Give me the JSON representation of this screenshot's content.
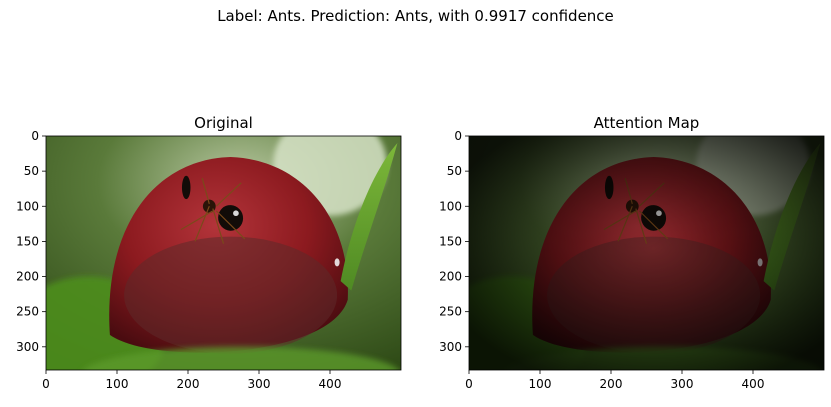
{
  "figure": {
    "suptitle": "Label: Ants. Prediction: Ants, with 0.9917 confidence"
  },
  "panels": [
    {
      "title": "Original",
      "variant": "original"
    },
    {
      "title": "Attention Map",
      "variant": "attention"
    }
  ],
  "chart_data": [
    {
      "type": "image",
      "title": "Original",
      "xlabel": "",
      "ylabel": "",
      "xlim": [
        0,
        500
      ],
      "ylim": [
        333,
        0
      ],
      "xticks": [
        0,
        100,
        200,
        300,
        400
      ],
      "yticks": [
        0,
        50,
        100,
        150,
        200,
        250,
        300
      ],
      "image_content": "macro photo of an ant on a red flower bud with green background"
    },
    {
      "type": "image",
      "title": "Attention Map",
      "xlabel": "",
      "ylabel": "",
      "xlim": [
        0,
        500
      ],
      "ylim": [
        333,
        0
      ],
      "xticks": [
        0,
        100,
        200,
        300,
        400
      ],
      "yticks": [
        0,
        50,
        100,
        150,
        200,
        250,
        300
      ],
      "image_content": "same photo darkened except regions of high attention"
    }
  ],
  "colors": {
    "bud_red": "#8c1a1f",
    "leaf_green": "#4f8a23",
    "bg_green": "#5a7a3a",
    "ant_black": "#120c08"
  }
}
